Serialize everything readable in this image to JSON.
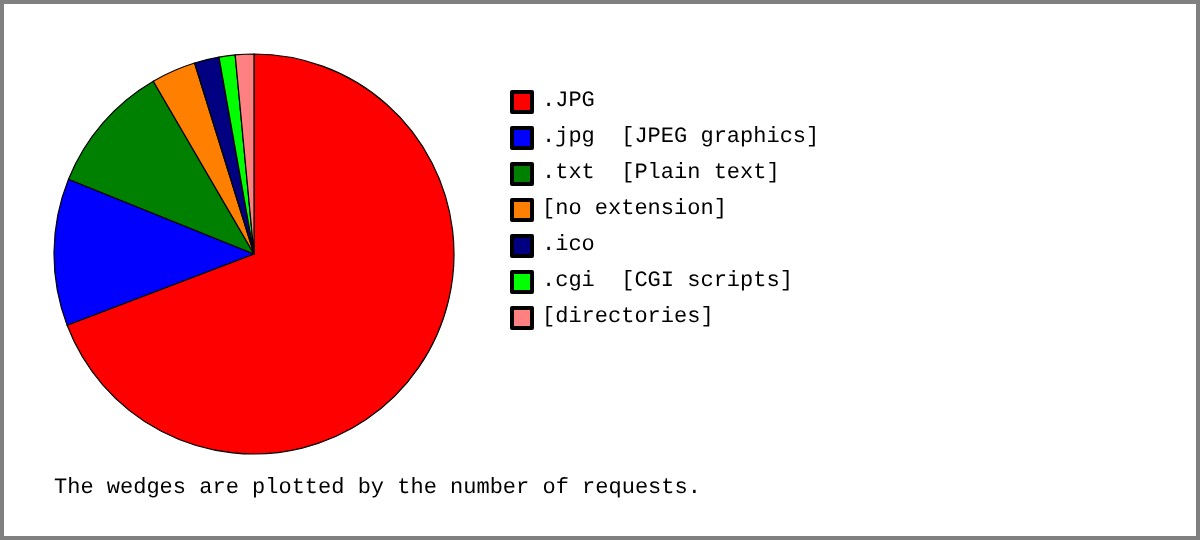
{
  "chart_data": {
    "type": "pie",
    "categories": [
      ".JPG",
      ".jpg  [JPEG graphics]",
      ".txt  [Plain text]",
      "[no extension]",
      ".ico",
      ".cgi  [CGI scripts]",
      "[directories]"
    ],
    "values": [
      69.2,
      11.9,
      10.5,
      3.6,
      2.0,
      1.3,
      1.5
    ],
    "colors": [
      "#ff0000",
      "#0000ff",
      "#008000",
      "#ff8000",
      "#000080",
      "#00ff00",
      "#ff8080"
    ],
    "legend": "right",
    "annotations": [
      "The wedges are plotted by the number of requests."
    ]
  }
}
